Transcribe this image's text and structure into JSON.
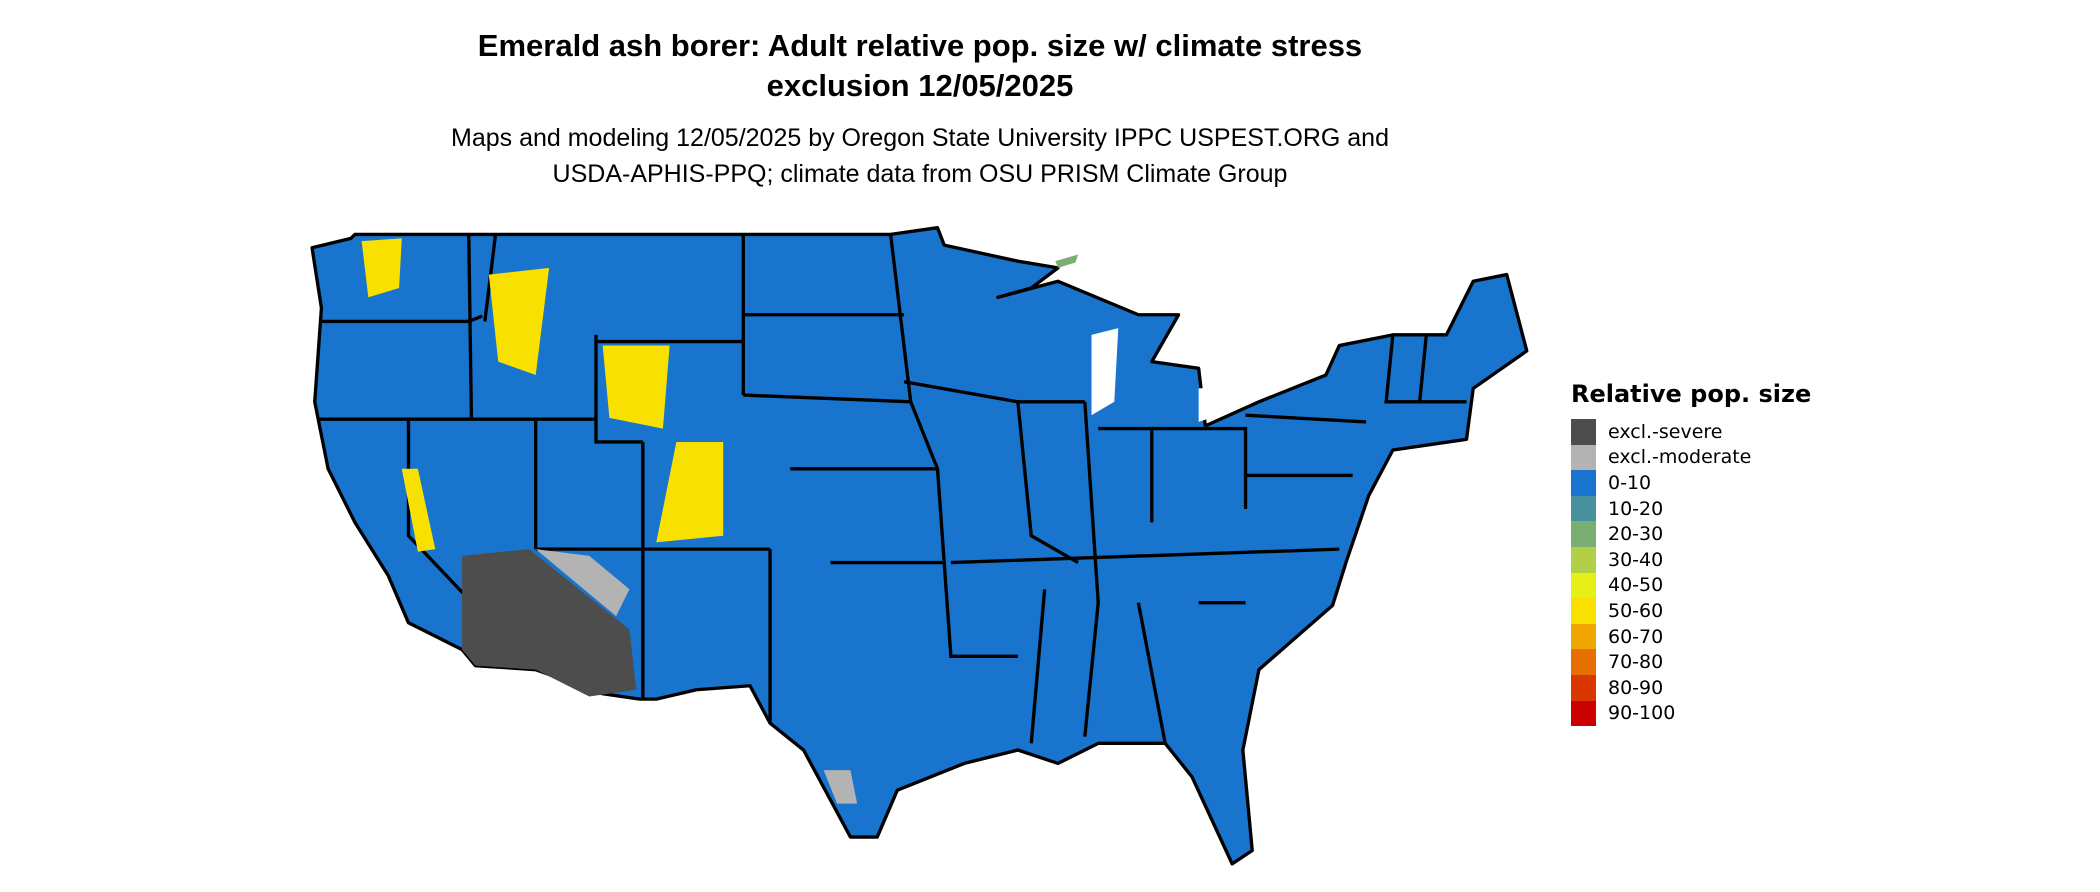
{
  "title": {
    "line1": "Emerald ash borer: Adult relative pop. size w/ climate stress",
    "line2": "exclusion 12/05/2025"
  },
  "subtitle": {
    "line1": "Maps and modeling 12/05/2025 by Oregon State University IPPC USPEST.ORG and",
    "line2": "USDA-APHIS-PPQ; climate data from OSU PRISM Climate Group"
  },
  "legend": {
    "title": "Relative pop. size",
    "items": [
      {
        "label": "excl.-severe",
        "color": "#4d4d4d"
      },
      {
        "label": "excl.-moderate",
        "color": "#b3b3b3"
      },
      {
        "label": "0-10",
        "color": "#1874cd"
      },
      {
        "label": "10-20",
        "color": "#4a919e"
      },
      {
        "label": "20-30",
        "color": "#7aae72"
      },
      {
        "label": "30-40",
        "color": "#b2d047"
      },
      {
        "label": "40-50",
        "color": "#e5ef18"
      },
      {
        "label": "50-60",
        "color": "#f8e001"
      },
      {
        "label": "60-70",
        "color": "#f0a800"
      },
      {
        "label": "70-80",
        "color": "#e57000"
      },
      {
        "label": "80-90",
        "color": "#db3600"
      },
      {
        "label": "90-100",
        "color": "#cc0000"
      }
    ]
  }
}
